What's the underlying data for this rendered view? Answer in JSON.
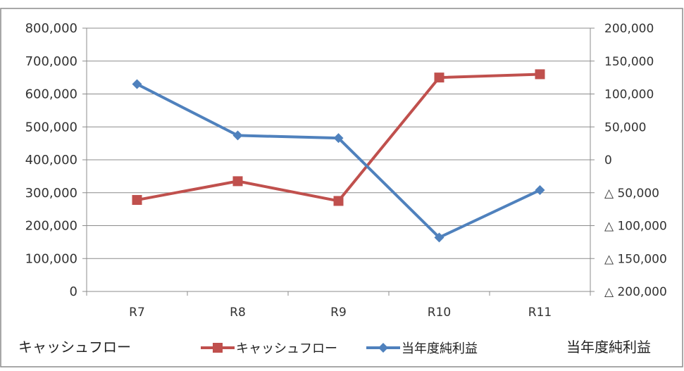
{
  "chart_data": {
    "type": "line",
    "categories": [
      "R7",
      "R8",
      "R9",
      "R10",
      "R11"
    ],
    "y_left": {
      "title": "キャッシュフロー",
      "range": [
        0,
        800000
      ],
      "ticks": [
        0,
        100000,
        200000,
        300000,
        400000,
        500000,
        600000,
        700000,
        800000
      ],
      "tick_labels": [
        "0",
        "100,000",
        "200,000",
        "300,000",
        "400,000",
        "500,000",
        "600,000",
        "700,000",
        "800,000"
      ]
    },
    "y_right": {
      "title": "当年度純利益",
      "range": [
        -200000,
        200000
      ],
      "ticks": [
        -200000,
        -150000,
        -100000,
        -50000,
        0,
        50000,
        100000,
        150000,
        200000
      ],
      "tick_labels": [
        "△ 200,000",
        "△ 150,000",
        "△ 100,000",
        "△ 50,000",
        "0",
        "50,000",
        "100,000",
        "150,000",
        "200,000"
      ]
    },
    "series": [
      {
        "name": "キャッシュフロー",
        "axis": "left",
        "color": "#c0504d",
        "marker": "square",
        "values": [
          278000,
          335000,
          275000,
          650000,
          660000
        ]
      },
      {
        "name": "当年度純利益",
        "axis": "right",
        "color": "#4f81bd",
        "marker": "diamond",
        "values": [
          115000,
          37000,
          33000,
          -118000,
          -46000
        ]
      }
    ],
    "grid": true,
    "legend": "bottom"
  }
}
